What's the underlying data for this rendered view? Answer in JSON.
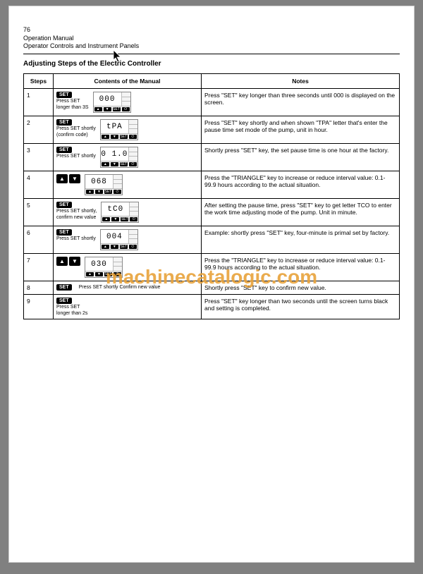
{
  "page_number": "76",
  "header_lines": [
    "Operation Manual",
    "Operator Controls and Instrument Panels"
  ],
  "section_title": "Adjusting Steps of the Electric Controller",
  "watermark": "machinecatalogic.com",
  "table": {
    "columns": [
      "Steps",
      "Contents of the Manual",
      "Notes"
    ],
    "rows": [
      {
        "step": "1",
        "btn": "SET",
        "caption1": "Press SET",
        "caption2": "longer than 3S",
        "display": "000",
        "show_display": true,
        "show_tri": false,
        "notes": "Press \"SET\" key longer than three seconds until 000 is displayed on the screen."
      },
      {
        "step": "2",
        "btn": "SET",
        "caption1": "Press SET shortly",
        "caption2": "(confirm code)",
        "display": "tPA",
        "show_display": true,
        "show_tri": false,
        "notes": "Press \"SET\" key shortly and when shown \"TPA\" letter that's enter the pause time set mode of the pump, unit in hour."
      },
      {
        "step": "3",
        "btn": "SET",
        "caption1": "Press SET shortly",
        "caption2": "",
        "display": "0 1.0",
        "show_display": true,
        "show_tri": false,
        "notes": "Shortly press \"SET\" key, the set pause time is one hour at the factory."
      },
      {
        "step": "4",
        "btn": "",
        "caption1": "",
        "caption2": "",
        "display": "068",
        "show_display": true,
        "show_tri": true,
        "notes": "Press the \"TRIANGLE\" key to increase or reduce interval value: 0.1-99.9 hours according to the actual situation."
      },
      {
        "step": "5",
        "btn": "SET",
        "caption1": "Press SET shortly,",
        "caption2": "confirm new value",
        "display": "tC0",
        "show_display": true,
        "show_tri": false,
        "notes": "After setting the pause time, press \"SET\" key to get letter TCO to enter the work time adjusting mode of the pump. Unit in minute."
      },
      {
        "step": "6",
        "btn": "SET",
        "caption1": "Press SET shortly",
        "caption2": "",
        "display": "004",
        "show_display": true,
        "show_tri": false,
        "notes": "Example: shortly press \"SET\" key, four-minute is primal set by factory."
      },
      {
        "step": "7",
        "btn": "",
        "caption1": "",
        "caption2": "",
        "display": "030",
        "show_display": true,
        "show_tri": true,
        "notes": "Press the \"TRIANGLE\" key to increase or reduce interval value: 0.1-99.9 hours according to the actual situation."
      },
      {
        "step": "8",
        "btn": "SET",
        "caption1": "Press SET shortly  Confirm new value",
        "caption2": "",
        "display": "",
        "show_display": false,
        "show_tri": false,
        "inline_caption": true,
        "notes": "Shortly press \"SET\" key to confirm new value."
      },
      {
        "step": "9",
        "btn": "SET",
        "caption1": "Press SET",
        "caption2": "longer than 2s",
        "display": "",
        "show_display": false,
        "show_tri": false,
        "notes": "Press \"SET\" key longer than two seconds until the screen turns black and setting is completed."
      }
    ]
  },
  "colors": {
    "page_bg": "#808080",
    "paper_bg": "#ffffff",
    "text": "#000000",
    "set_btn_bg": "#000000",
    "set_btn_fg": "#ffffff",
    "display_bg": "#f4f4f4",
    "watermark": "#e8a23a"
  }
}
